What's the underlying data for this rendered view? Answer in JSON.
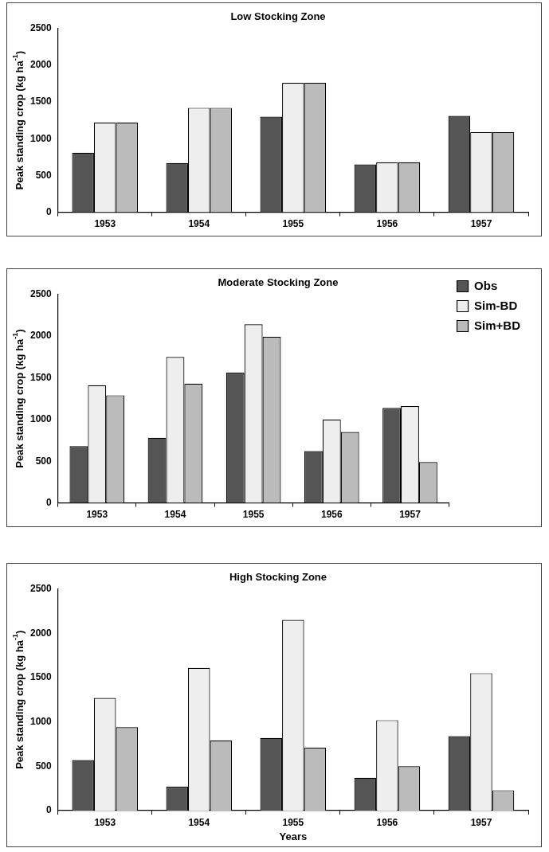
{
  "chart_data": [
    {
      "type": "bar",
      "title": "Low Stocking Zone",
      "ylabel": "Peak standing crop (kg ha$^{-1}$)",
      "categories": [
        "1953",
        "1954",
        "1955",
        "1956",
        "1957"
      ],
      "series": [
        {
          "color": "#555555",
          "values": [
            810,
            670,
            1300,
            650,
            1310
          ]
        },
        {
          "color": "#eeeeee",
          "values": [
            1220,
            1420,
            1760,
            680,
            1090
          ]
        },
        {
          "color": "#bbbbbb",
          "values": [
            1220,
            1420,
            1760,
            680,
            1090
          ]
        }
      ],
      "ylim": [
        0,
        2500
      ],
      "yticks": [
        0,
        500,
        1000,
        1500,
        2000,
        2500
      ],
      "grid": false,
      "legend": false
    },
    {
      "type": "bar",
      "title": "Moderate Stocking Zone",
      "ylabel": "Peak standing crop (kg ha$^{-1}$)",
      "categories": [
        "1953",
        "1954",
        "1955",
        "1956",
        "1957"
      ],
      "series": [
        {
          "name": "Obs",
          "color": "#555555",
          "values": [
            680,
            780,
            1560,
            620,
            1140
          ]
        },
        {
          "name": "Sim-BD",
          "color": "#eeeeee",
          "values": [
            1410,
            1750,
            2140,
            1000,
            1160
          ]
        },
        {
          "name": "Sim+BD",
          "color": "#bbbbbb",
          "values": [
            1290,
            1430,
            1990,
            850,
            490
          ]
        }
      ],
      "ylim": [
        0,
        2500
      ],
      "yticks": [
        0,
        500,
        1000,
        1500,
        2000,
        2500
      ],
      "grid": false,
      "legend": "top right"
    },
    {
      "type": "bar",
      "title": "High Stocking Zone",
      "ylabel": "Peak standing crop (kg ha$^{-1}$)",
      "xlabel": "Years",
      "categories": [
        "1953",
        "1954",
        "1955",
        "1956",
        "1957"
      ],
      "series": [
        {
          "color": "#555555",
          "values": [
            570,
            270,
            820,
            370,
            840
          ]
        },
        {
          "color": "#eeeeee",
          "values": [
            1270,
            1610,
            2150,
            1020,
            1550
          ]
        },
        {
          "color": "#bbbbbb",
          "values": [
            940,
            790,
            710,
            500,
            230
          ]
        }
      ],
      "ylim": [
        0,
        2500
      ],
      "yticks": [
        0,
        500,
        1000,
        1500,
        2000,
        2500
      ],
      "grid": false,
      "legend": false
    }
  ]
}
